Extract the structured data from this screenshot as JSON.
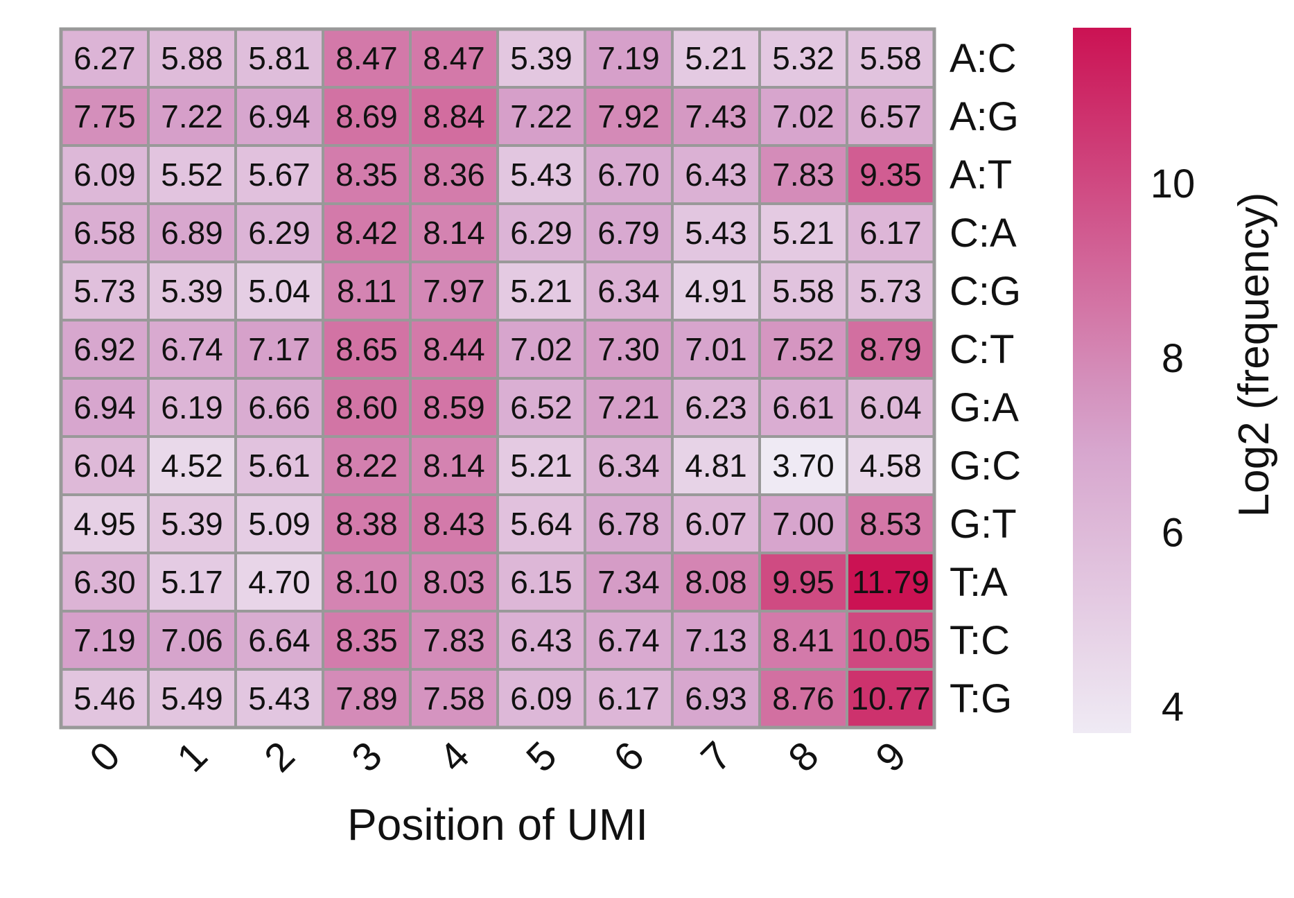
{
  "chart_data": {
    "type": "heatmap",
    "xlabel": "Position of UMI",
    "ylabel": "",
    "x": [
      "0",
      "1",
      "2",
      "3",
      "4",
      "5",
      "6",
      "7",
      "8",
      "9"
    ],
    "y": [
      "A:C",
      "A:G",
      "A:T",
      "C:A",
      "C:G",
      "C:T",
      "G:A",
      "G:C",
      "G:T",
      "T:A",
      "T:C",
      "T:G"
    ],
    "values": [
      [
        6.27,
        5.88,
        5.81,
        8.47,
        8.47,
        5.39,
        7.19,
        5.21,
        5.32,
        5.58
      ],
      [
        7.75,
        7.22,
        6.94,
        8.69,
        8.84,
        7.22,
        7.92,
        7.43,
        7.02,
        6.57
      ],
      [
        6.09,
        5.52,
        5.67,
        8.35,
        8.36,
        5.43,
        6.7,
        6.43,
        7.83,
        9.35
      ],
      [
        6.58,
        6.89,
        6.29,
        8.42,
        8.14,
        6.29,
        6.79,
        5.43,
        5.21,
        6.17
      ],
      [
        5.73,
        5.39,
        5.04,
        8.11,
        7.97,
        5.21,
        6.34,
        4.91,
        5.58,
        5.73
      ],
      [
        6.92,
        6.74,
        7.17,
        8.65,
        8.44,
        7.02,
        7.3,
        7.01,
        7.52,
        8.79
      ],
      [
        6.94,
        6.19,
        6.66,
        8.6,
        8.59,
        6.52,
        7.21,
        6.23,
        6.61,
        6.04
      ],
      [
        6.04,
        4.52,
        5.61,
        8.22,
        8.14,
        5.21,
        6.34,
        4.81,
        3.7,
        4.58
      ],
      [
        4.95,
        5.39,
        5.09,
        8.38,
        8.43,
        5.64,
        6.78,
        6.07,
        7.0,
        8.53
      ],
      [
        6.3,
        5.17,
        4.7,
        8.1,
        8.03,
        6.15,
        7.34,
        8.08,
        9.95,
        11.79
      ],
      [
        7.19,
        7.06,
        6.64,
        8.35,
        7.83,
        6.43,
        6.74,
        7.13,
        8.41,
        10.05
      ],
      [
        5.46,
        5.49,
        5.43,
        7.89,
        7.58,
        6.09,
        6.17,
        6.93,
        8.76,
        10.77
      ]
    ],
    "colorbar": {
      "label": "Log2 (frequency)",
      "ticks": [
        4,
        6,
        8,
        10
      ],
      "range": [
        3.7,
        11.79
      ],
      "color_low": "#efeaf4",
      "color_high": "#cb1253"
    },
    "cell_border_color": "#999999",
    "grid": true,
    "legend_position": "right"
  }
}
